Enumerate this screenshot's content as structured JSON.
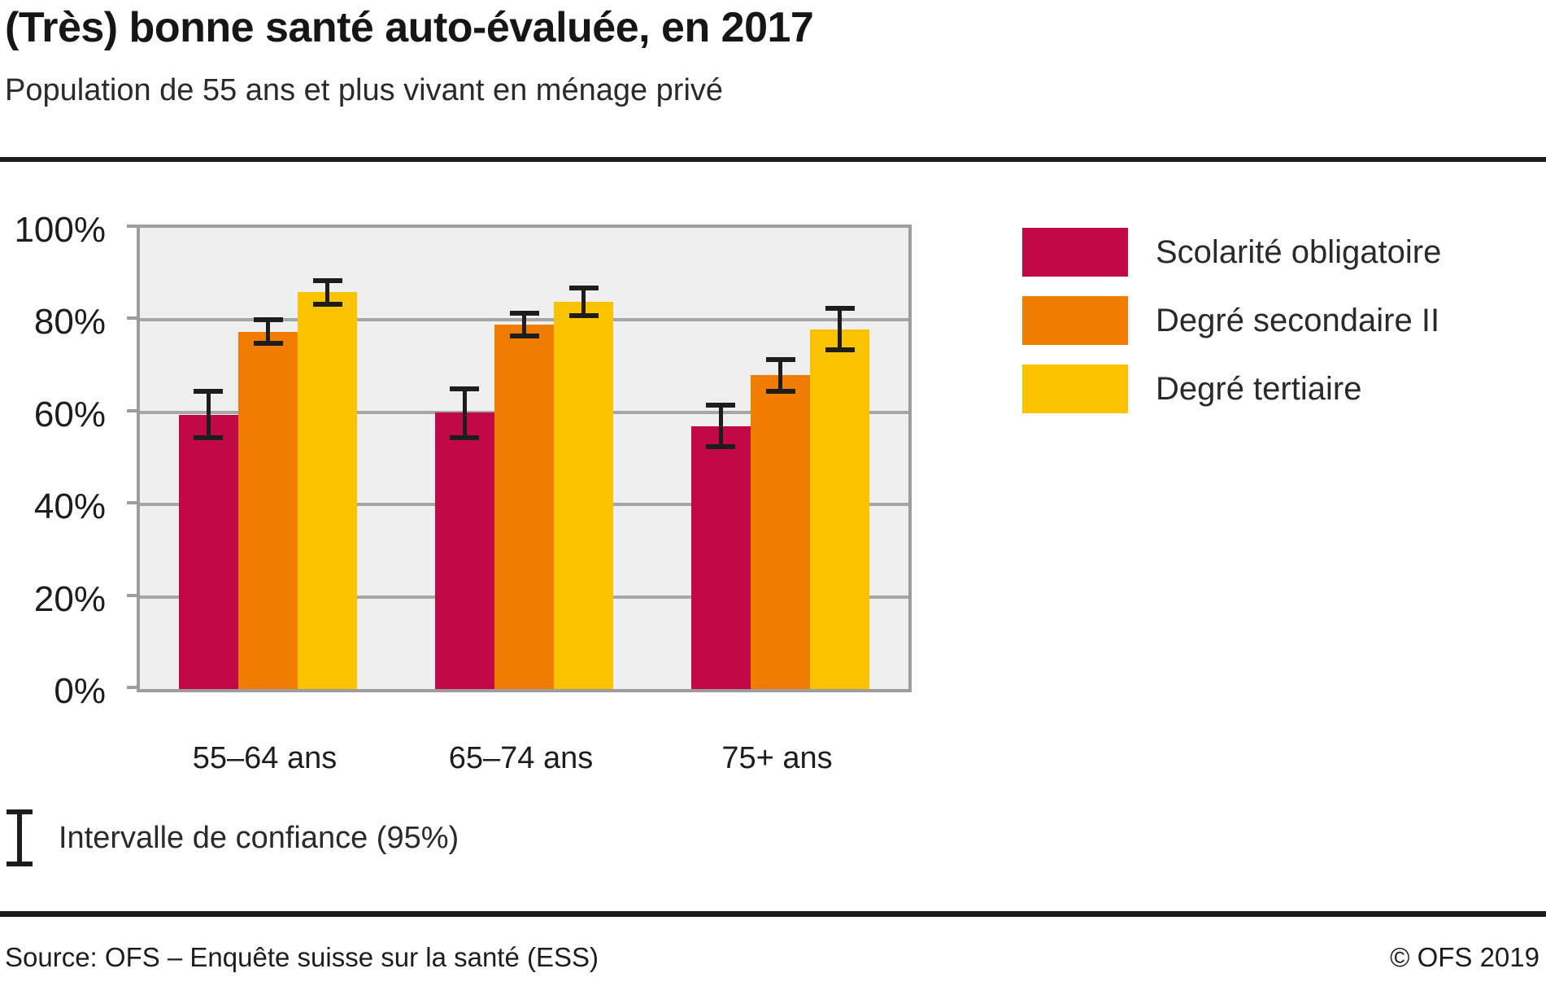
{
  "header": {
    "title": "(Très) bonne santé auto-évaluée, en 2017",
    "subtitle": "Population de 55 ans et plus vivant en ménage privé"
  },
  "notes": {
    "ci_label": "Intervalle de confiance (95%)"
  },
  "footer": {
    "source": "Source: OFS – Enquête suisse sur la santé (ESS)",
    "copyright": "© OFS 2019"
  },
  "colors": {
    "plot_background": "#efefef",
    "grid": "#a6a6a6",
    "axis_border": "#9d9d9d",
    "error_bar": "#1d1d1b",
    "text": "#1d1d1b"
  },
  "chart_data": {
    "type": "bar",
    "title": "(Très) bonne santé auto-évaluée, en 2017",
    "subtitle": "Population de 55 ans et plus vivant en ménage privé",
    "categories": [
      "55–64 ans",
      "65–74 ans",
      "75+ ans"
    ],
    "series": [
      {
        "name": "Scolarité obligatoire",
        "color": "#c20948",
        "values": [
          59.5,
          60,
          57
        ],
        "ci_low": [
          54.5,
          54.5,
          52.5
        ],
        "ci_high": [
          64.5,
          65,
          61.5
        ]
      },
      {
        "name": "Degré secondaire II",
        "color": "#f07d00",
        "values": [
          77.5,
          79,
          68
        ],
        "ci_low": [
          75,
          76.5,
          64.5
        ],
        "ci_high": [
          80,
          81.5,
          71.5
        ]
      },
      {
        "name": "Degré tertiaire",
        "color": "#fbc200",
        "values": [
          86,
          84,
          78
        ],
        "ci_low": [
          83.5,
          81,
          73.5
        ],
        "ci_high": [
          88.5,
          87,
          82.5
        ]
      }
    ],
    "xlabel": "",
    "ylabel": "",
    "ylim": [
      0,
      100
    ],
    "yticks": [
      0,
      20,
      40,
      60,
      80,
      100
    ],
    "ytick_suffix": "%",
    "grid": true,
    "legend_position": "right",
    "error_bars": "intervalle de confiance 95%"
  }
}
